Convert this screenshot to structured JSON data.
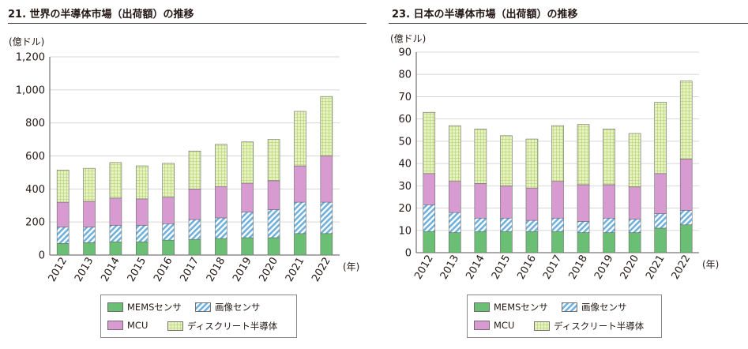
{
  "charts": [
    {
      "id": "left",
      "title": "21. 世界の半導体市場（出荷額）の推移",
      "unit_label": "(億ドル)",
      "x_unit_label": "(年)"
    },
    {
      "id": "right",
      "title": "23. 日本の半導体市場（出荷額）の推移",
      "unit_label": "(億ドル)",
      "x_unit_label": "(年)"
    }
  ],
  "legend": {
    "mems": "MEMSセンサ",
    "image": "画像センサ",
    "mcu": "MCU",
    "discrete": "ディスクリート半導体"
  },
  "colors": {
    "mems": "#6bbf74",
    "image": "#8ec6e6",
    "mcu": "#d79bd2",
    "discrete": "#dcedae",
    "grid": "#d8d8d8",
    "axis": "#555555"
  },
  "chart_data": [
    {
      "type": "bar",
      "stacked": true,
      "title": "21. 世界の半導体市場（出荷額）の推移",
      "ylabel": "(億ドル)",
      "xlabel": "(年)",
      "ylim": [
        0,
        1200
      ],
      "yticks": [
        0,
        200,
        400,
        600,
        800,
        1000,
        1200
      ],
      "ytick_labels": [
        "0",
        "200",
        "400",
        "600",
        "800",
        "1,000",
        "1,200"
      ],
      "grid": true,
      "categories": [
        "2012",
        "2013",
        "2014",
        "2015",
        "2016",
        "2017",
        "2018",
        "2019",
        "2020",
        "2021",
        "2022"
      ],
      "series": [
        {
          "name": "MEMSセンサ",
          "values": [
            70,
            75,
            80,
            80,
            90,
            95,
            100,
            105,
            105,
            130,
            130
          ]
        },
        {
          "name": "画像センサ",
          "values": [
            100,
            95,
            100,
            100,
            100,
            120,
            125,
            155,
            170,
            190,
            190
          ]
        },
        {
          "name": "MCU",
          "values": [
            150,
            155,
            165,
            160,
            160,
            185,
            190,
            175,
            175,
            220,
            280
          ]
        },
        {
          "name": "ディスクリート半導体",
          "values": [
            195,
            200,
            215,
            200,
            205,
            230,
            255,
            250,
            250,
            330,
            360
          ]
        }
      ]
    },
    {
      "type": "bar",
      "stacked": true,
      "title": "23. 日本の半導体市場（出荷額）の推移",
      "ylabel": "(億ドル)",
      "xlabel": "(年)",
      "ylim": [
        0,
        90
      ],
      "yticks": [
        0,
        10,
        20,
        30,
        40,
        50,
        60,
        70,
        80,
        90
      ],
      "ytick_labels": [
        "0",
        "10",
        "20",
        "30",
        "40",
        "50",
        "60",
        "70",
        "80",
        "90"
      ],
      "grid": true,
      "categories": [
        "2012",
        "2013",
        "2014",
        "2015",
        "2016",
        "2017",
        "2018",
        "2019",
        "2020",
        "2021",
        "2022"
      ],
      "series": [
        {
          "name": "MEMSセンサ",
          "values": [
            9.5,
            9,
            9.5,
            9.5,
            9.5,
            9.5,
            9,
            9,
            9,
            11,
            12.5
          ]
        },
        {
          "name": "画像センサ",
          "values": [
            12,
            9,
            6,
            6,
            5,
            6,
            5,
            6.5,
            6,
            6.5,
            6.5
          ]
        },
        {
          "name": "MCU",
          "values": [
            14,
            14,
            15.5,
            14.5,
            14.5,
            16.5,
            16.5,
            15,
            14.5,
            18,
            23
          ]
        },
        {
          "name": "ディスクリート半導体",
          "values": [
            27.5,
            25,
            24.5,
            22.5,
            22,
            25,
            27,
            25,
            24,
            32,
            35
          ]
        }
      ]
    }
  ]
}
